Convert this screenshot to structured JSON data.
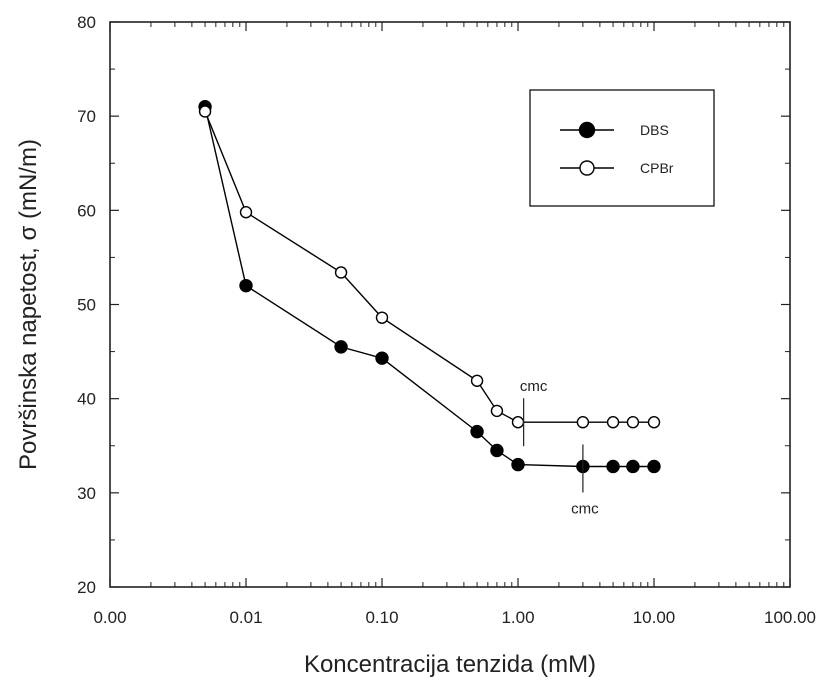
{
  "chart_data": {
    "type": "line",
    "title": "",
    "xlabel": "Koncentracija tenzida (mM)",
    "ylabel": "Površinska napetost, σ (mN/m)",
    "xscale": "log",
    "xlim": [
      0.001,
      100
    ],
    "ylim": [
      20,
      80
    ],
    "x_tick_labels": [
      "0.00",
      "0.01",
      "0.10",
      "1.00",
      "10.00",
      "100.00"
    ],
    "x_tick_values": [
      0.001,
      0.01,
      0.1,
      1,
      10,
      100
    ],
    "y_ticks": [
      20,
      30,
      40,
      50,
      60,
      70,
      80
    ],
    "grid": false,
    "legend_position": "top-right",
    "series": [
      {
        "name": "DBS",
        "marker": "filled-circle",
        "color": "#000000",
        "x": [
          0.005,
          0.01,
          0.05,
          0.1,
          0.5,
          0.7,
          1.0,
          3.0,
          5.0,
          7.0,
          10.0
        ],
        "y": [
          71.0,
          52.0,
          45.5,
          44.3,
          36.5,
          34.5,
          33.0,
          32.8,
          32.8,
          32.8,
          32.8
        ]
      },
      {
        "name": "CPBr",
        "marker": "open-circle",
        "color": "#000000",
        "x": [
          0.005,
          0.01,
          0.05,
          0.1,
          0.5,
          0.7,
          1.0,
          3.0,
          5.0,
          7.0,
          10.0
        ],
        "y": [
          70.5,
          59.8,
          53.4,
          48.6,
          41.9,
          38.7,
          37.5,
          37.5,
          37.5,
          37.5,
          37.5
        ]
      }
    ],
    "annotations": [
      {
        "text": "cmc",
        "x": 1.1,
        "series": "CPBr"
      },
      {
        "text": "cmc",
        "x": 3.0,
        "series": "DBS"
      }
    ]
  }
}
